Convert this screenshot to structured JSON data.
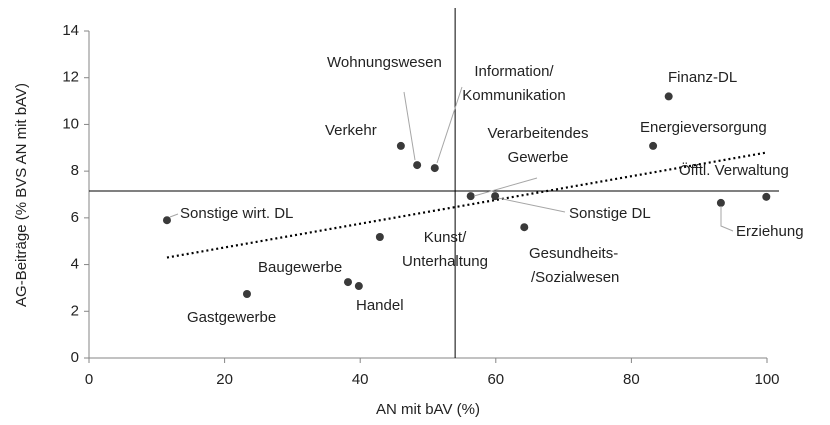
{
  "chart_data": {
    "type": "scatter",
    "xlabel": "AN mit bAV (%)",
    "ylabel": "AG-Beiträge (% BVS AN mit bAV)",
    "xlim": [
      0,
      100
    ],
    "xticks": [
      0,
      20,
      40,
      60,
      80,
      100
    ],
    "ylim": [
      0,
      14
    ],
    "yticks": [
      0,
      2,
      4,
      6,
      8,
      10,
      12,
      14
    ],
    "color": "#3a3a3a",
    "series": [
      {
        "labels": [
          [
            "Sonstige wirt. DL"
          ],
          [
            "Gastgewerbe"
          ],
          [
            "Baugewerbe"
          ],
          [
            "Handel"
          ],
          [
            "Kunst/",
            "Unterhaltung"
          ],
          [
            "Verkehr"
          ],
          [
            "Wohnungswesen"
          ],
          [
            "Information/",
            "Kommunikation"
          ],
          [
            "Verarbeitendes",
            "Gewerbe"
          ],
          [
            "Sonstige DL"
          ],
          [
            "Gesundheits-",
            "/Sozialwesen"
          ],
          [
            "Energieversorgung"
          ],
          [
            "Finanz-DL"
          ],
          [
            "Öfftl. Verwaltung"
          ],
          [
            "Erziehung"
          ]
        ],
        "x": [
          11.5,
          23.3,
          38.2,
          39.8,
          42.9,
          46.0,
          48.4,
          51.0,
          56.3,
          59.9,
          64.2,
          83.2,
          85.5,
          93.2,
          99.9
        ],
        "values": [
          5.9,
          2.74,
          3.25,
          3.08,
          5.18,
          9.08,
          8.26,
          8.13,
          6.93,
          6.93,
          5.6,
          9.08,
          11.2,
          6.64,
          6.9
        ]
      }
    ],
    "trendline": {
      "x": [
        11.5,
        100
      ],
      "values": [
        4.3,
        8.8
      ]
    },
    "mean_lines": {
      "x": 54.0,
      "y": 7.15
    }
  }
}
